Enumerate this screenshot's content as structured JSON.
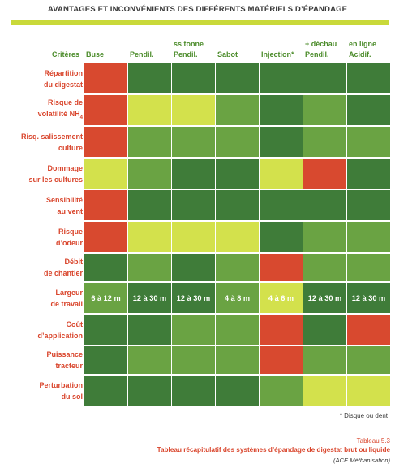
{
  "title": "AVANTAGES ET INCONVÉNIENTS DES DIFFÉRENTS MATÉRIELS D’ÉPANDAGE",
  "header": {
    "criteria": "Critères",
    "columns": [
      {
        "line1": "Buse",
        "line2": ""
      },
      {
        "line1": "Pendil.",
        "line2": ""
      },
      {
        "line1": "Pendil.",
        "line2": "ss tonne"
      },
      {
        "line1": "Sabot",
        "line2": ""
      },
      {
        "line1": "Injection*",
        "line2": ""
      },
      {
        "line1": "Pendil.",
        "line2": "+ déchau"
      },
      {
        "line1": "Acidif.",
        "line2": "en ligne"
      }
    ]
  },
  "colors": {
    "dark_green": "#3f7c39",
    "medium_green": "#6aa343",
    "light_yellow_green": "#d3e14c",
    "orange_red": "#d8492f"
  },
  "rows": [
    {
      "label1": "Répartition",
      "label2": "du digestat",
      "cells": [
        "or",
        "dg",
        "dg",
        "dg",
        "dg",
        "dg",
        "dg"
      ],
      "values": [
        "",
        "",
        "",
        "",
        "",
        "",
        ""
      ]
    },
    {
      "label1": "Risque de",
      "label2": "volatilité NH",
      "label_sub": "4",
      "cells": [
        "or",
        "ly",
        "ly",
        "mg",
        "dg",
        "mg",
        "dg"
      ],
      "values": [
        "",
        "",
        "",
        "",
        "",
        "",
        ""
      ]
    },
    {
      "label1": "Risq. salissement",
      "label2": "culture",
      "cells": [
        "or",
        "mg",
        "mg",
        "mg",
        "dg",
        "mg",
        "mg"
      ],
      "values": [
        "",
        "",
        "",
        "",
        "",
        "",
        ""
      ]
    },
    {
      "label1": "Dommage",
      "label2": "sur les cultures",
      "cells": [
        "ly",
        "mg",
        "dg",
        "dg",
        "ly",
        "or",
        "dg"
      ],
      "values": [
        "",
        "",
        "",
        "",
        "",
        "",
        ""
      ]
    },
    {
      "label1": "Sensibilité",
      "label2": "au vent",
      "cells": [
        "or",
        "dg",
        "dg",
        "dg",
        "dg",
        "dg",
        "dg"
      ],
      "values": [
        "",
        "",
        "",
        "",
        "",
        "",
        ""
      ]
    },
    {
      "label1": "Risque",
      "label2": "d’odeur",
      "cells": [
        "or",
        "ly",
        "ly",
        "ly",
        "dg",
        "mg",
        "mg"
      ],
      "values": [
        "",
        "",
        "",
        "",
        "",
        "",
        ""
      ]
    },
    {
      "label1": "Débit",
      "label2": "de chantier",
      "cells": [
        "dg",
        "mg",
        "dg",
        "mg",
        "or",
        "mg",
        "mg"
      ],
      "values": [
        "",
        "",
        "",
        "",
        "",
        "",
        ""
      ]
    },
    {
      "label1": "Largeur",
      "label2": "de travail",
      "cells": [
        "mg",
        "dg",
        "dg",
        "mg",
        "ly",
        "dg",
        "dg"
      ],
      "values": [
        "6 à 12 m",
        "12 à 30 m",
        "12 à 30 m",
        "4 à 8 m",
        "4 à 6 m",
        "12 à 30 m",
        "12 à 30 m"
      ]
    },
    {
      "label1": "Coût",
      "label2": "d’application",
      "cells": [
        "dg",
        "dg",
        "mg",
        "mg",
        "or",
        "dg",
        "or"
      ],
      "values": [
        "",
        "",
        "",
        "",
        "",
        "",
        ""
      ]
    },
    {
      "label1": "Puissance",
      "label2": "tracteur",
      "cells": [
        "dg",
        "mg",
        "mg",
        "mg",
        "or",
        "mg",
        "mg"
      ],
      "values": [
        "",
        "",
        "",
        "",
        "",
        "",
        ""
      ]
    },
    {
      "label1": "Perturbation",
      "label2": "du sol",
      "cells": [
        "dg",
        "dg",
        "dg",
        "dg",
        "mg",
        "ly",
        "ly"
      ],
      "values": [
        "",
        "",
        "",
        "",
        "",
        "",
        ""
      ]
    }
  ],
  "footnote": "* Disque ou dent",
  "caption": {
    "number": "Tableau 5.3",
    "text": "Tableau récapitulatif des systèmes d’épandage de digestat brut ou liquide",
    "source": "(ACE Méthanisation)"
  }
}
